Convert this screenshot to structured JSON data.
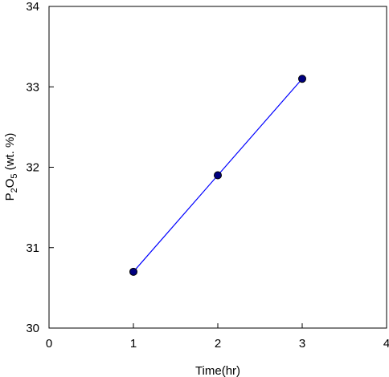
{
  "chart_data": {
    "type": "line",
    "title": "",
    "xlabel": "Time(hr)",
    "ylabel": {
      "base": "P",
      "sub1": "2",
      "mid": "O",
      "sub2": "5",
      "rest": " (wt. %)"
    },
    "x": [
      1,
      2,
      3
    ],
    "series": [
      {
        "values": [
          30.7,
          31.9,
          33.1
        ],
        "color": "#0000ff",
        "marker": "circle",
        "marker_fill": "#000080"
      }
    ],
    "xlim": [
      0,
      4
    ],
    "ylim": [
      30,
      34
    ],
    "x_ticks": [
      "0",
      "1",
      "2",
      "3",
      "4"
    ],
    "y_ticks": [
      "30",
      "31",
      "32",
      "33",
      "34"
    ],
    "grid": false,
    "legend": "none"
  }
}
